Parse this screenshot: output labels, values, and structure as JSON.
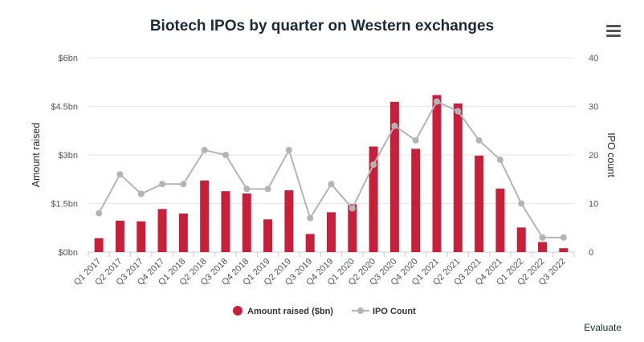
{
  "header": {
    "menu_icon": "hamburger-menu-icon"
  },
  "footer": {
    "link_label": "Evaluate"
  },
  "chart_data": {
    "type": "bar",
    "title": "Biotech IPOs by quarter on Western exchanges",
    "categories": [
      "Q1 2017",
      "Q2 2017",
      "Q3 2017",
      "Q4 2017",
      "Q1 2018",
      "Q2 2018",
      "Q3 2018",
      "Q4 2018",
      "Q1 2019",
      "Q2 2019",
      "Q3 2019",
      "Q4 2019",
      "Q1 2020",
      "Q2 2020",
      "Q3 2020",
      "Q4 2020",
      "Q1 2021",
      "Q2 2021",
      "Q3 2021",
      "Q4 2021",
      "Q1 2022",
      "Q2 2022",
      "Q3 2022"
    ],
    "ylabel": "Amount raised",
    "ylabel_right": "IPO count",
    "ylim": [
      0,
      6
    ],
    "ylim_right": [
      0,
      40
    ],
    "yticks": [
      {
        "value": 0,
        "label": "$0bn"
      },
      {
        "value": 1.5,
        "label": "$1.5bn"
      },
      {
        "value": 3,
        "label": "$3bn"
      },
      {
        "value": 4.5,
        "label": "$4.5bn"
      },
      {
        "value": 6,
        "label": "$6bn"
      }
    ],
    "yticks_right": [
      "0",
      "10",
      "20",
      "30",
      "40"
    ],
    "grid": true,
    "legend_position": "bottom",
    "series": [
      {
        "name": "Amount raised ($bn)",
        "type": "bar",
        "axis": "left",
        "color": "#c8203a",
        "values": [
          0.43,
          0.97,
          0.95,
          1.33,
          1.19,
          2.21,
          1.88,
          1.81,
          1.01,
          1.91,
          0.56,
          1.23,
          1.48,
          3.26,
          4.64,
          3.19,
          4.85,
          4.59,
          2.98,
          1.96,
          0.76,
          0.31,
          0.12
        ]
      },
      {
        "name": "IPO Count",
        "type": "line",
        "axis": "right",
        "color": "#b4b4b4",
        "values": [
          8,
          16,
          12,
          14,
          14,
          21,
          20,
          13,
          13,
          21,
          7,
          14,
          9,
          18,
          26,
          23,
          31,
          29,
          23,
          19,
          10,
          3,
          3
        ]
      }
    ]
  }
}
